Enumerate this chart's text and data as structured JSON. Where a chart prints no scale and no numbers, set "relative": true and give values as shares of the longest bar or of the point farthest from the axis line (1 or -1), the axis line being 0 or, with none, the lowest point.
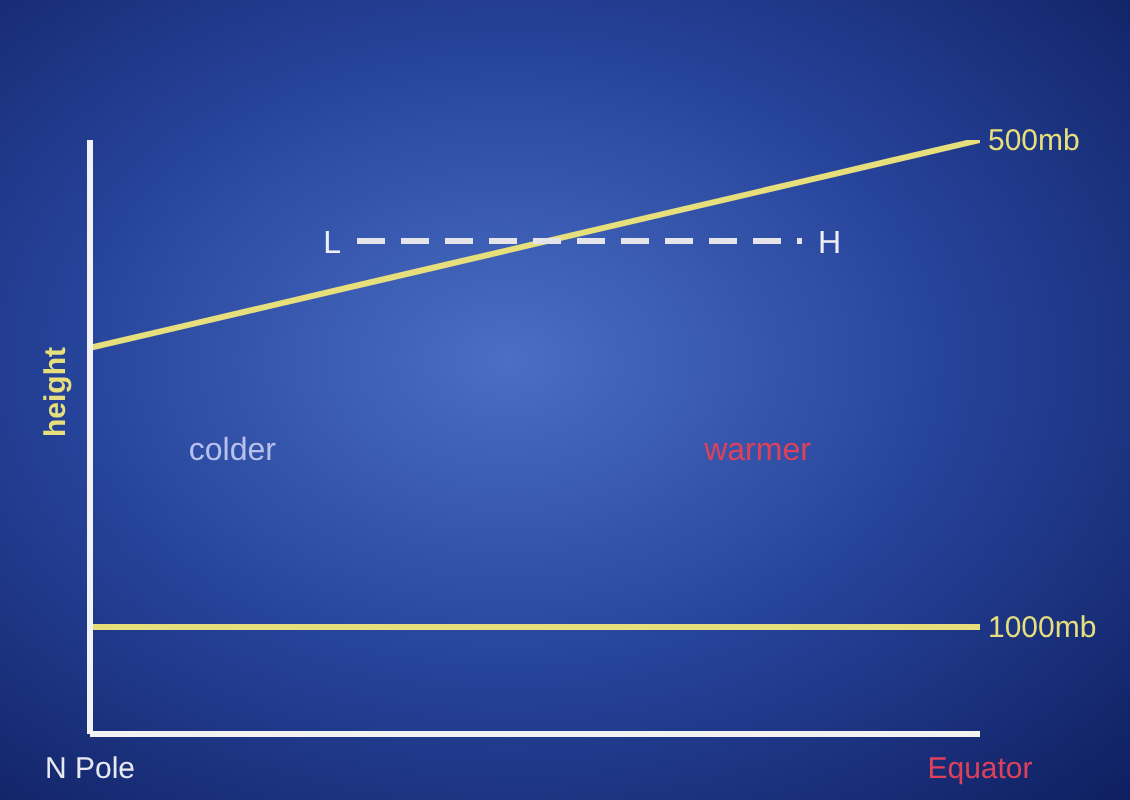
{
  "chart_data": {
    "type": "line",
    "relative": true,
    "ylabel": "height",
    "categories": [
      "N Pole",
      null,
      null,
      null,
      null,
      null,
      null,
      null,
      null,
      null,
      "Equator"
    ],
    "series": [
      {
        "name": "500mb",
        "color": "#e6df7c",
        "values": [
          0.65,
          0.685,
          0.72,
          0.755,
          0.79,
          0.825,
          0.86,
          0.895,
          0.93,
          0.965,
          1
        ]
      },
      {
        "name": "1000mb",
        "color": "#e6df7c",
        "values": [
          0.18,
          0.18,
          0.18,
          0.18,
          0.18,
          0.18,
          0.18,
          0.18,
          0.18,
          0.18,
          0.18
        ]
      },
      {
        "color": "#e4e4ea",
        "line_style": "dashed",
        "values": [
          null,
          null,
          null,
          0.83,
          0.83,
          0.83,
          0.83,
          0.83,
          0.83,
          null,
          null
        ]
      }
    ],
    "annotations": [
      "L",
      "H",
      "colder",
      "warmer"
    ],
    "grid": false,
    "legend": false,
    "marker": "none"
  }
}
